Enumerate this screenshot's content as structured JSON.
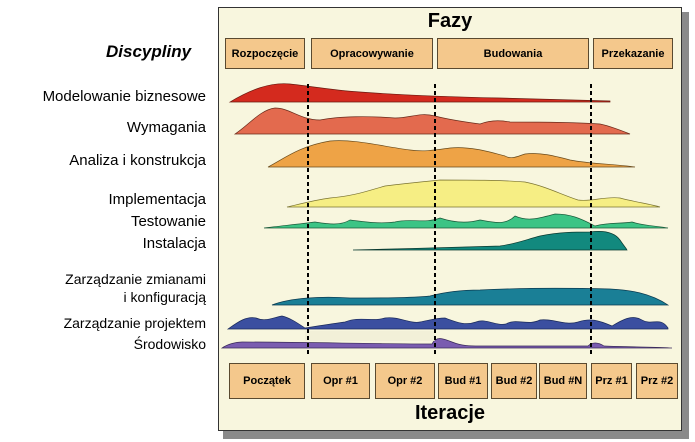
{
  "title_phases": "Fazy",
  "title_disciplines": "Discypliny",
  "title_iterations": "Iteracje",
  "phases": [
    {
      "label": "Rozpoczęcie"
    },
    {
      "label": "Opracowywanie"
    },
    {
      "label": "Budowania"
    },
    {
      "label": "Przekazanie"
    }
  ],
  "disciplines": [
    {
      "label": "Modelowanie biznesowe",
      "color": "#d42a1e"
    },
    {
      "label": "Wymagania",
      "color": "#e36a4e"
    },
    {
      "label": "Analiza i konstrukcja",
      "color": "#eea346"
    },
    {
      "label": "Implementacja",
      "color": "#f6ee84"
    },
    {
      "label": "Testowanie",
      "color": "#3cc485"
    },
    {
      "label": "Instalacja",
      "color": "#12897e"
    },
    {
      "label": "Zarządzanie zmianami",
      "color": "#1a7f96"
    },
    {
      "label": "i konfiguracją",
      "color": "#1a7f96"
    },
    {
      "label": "Zarządzanie projektem",
      "color": "#3b4fa0"
    },
    {
      "label": "Środowisko",
      "color": "#7a5cb0"
    }
  ],
  "iterations": [
    {
      "label": "Początek"
    },
    {
      "label": "Opr #1"
    },
    {
      "label": "Opr #2"
    },
    {
      "label": "Bud #1"
    },
    {
      "label": "Bud #2"
    },
    {
      "label": "Bud #N"
    },
    {
      "label": "Prz #1"
    },
    {
      "label": "Prz #2"
    }
  ]
}
